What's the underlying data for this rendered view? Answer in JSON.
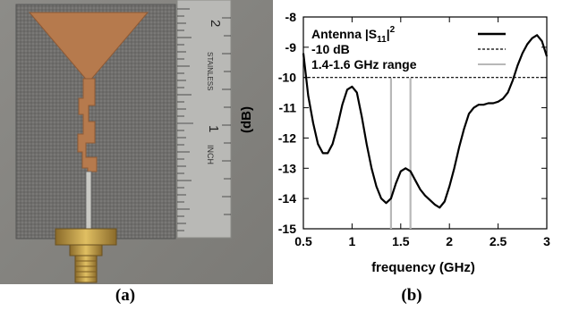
{
  "figure": {
    "panel_a_caption": "(a)",
    "panel_b_caption": "(b)",
    "photo": {
      "description_icons": [
        "antenna-pcb-photo",
        "ruler-icon",
        "sma-connector-icon"
      ],
      "ruler_labels": [
        "2",
        "STAINLESS",
        "1",
        "INCH"
      ]
    }
  },
  "chart_data": {
    "type": "line",
    "title": "",
    "xlabel": "frequency (GHz)",
    "ylabel": "(dB)",
    "xlim": [
      0.5,
      3
    ],
    "ylim": [
      -15,
      -8
    ],
    "xticks": [
      "0.5",
      "1",
      "1.5",
      "2",
      "2.5",
      "3"
    ],
    "yticks": [
      "-8",
      "-9",
      "-10",
      "-11",
      "-12",
      "-13",
      "-14",
      "-15"
    ],
    "grid": false,
    "legend_position": "top-left",
    "series": [
      {
        "name": "Antenna |S11|^2",
        "legend_main": "Antenna |S",
        "legend_sub": "11",
        "legend_sup": "2",
        "style": "solid-thick",
        "color": "#000000",
        "x": [
          0.5,
          0.55,
          0.6,
          0.65,
          0.7,
          0.75,
          0.8,
          0.85,
          0.9,
          0.95,
          1.0,
          1.05,
          1.1,
          1.15,
          1.2,
          1.25,
          1.3,
          1.35,
          1.4,
          1.45,
          1.5,
          1.55,
          1.6,
          1.65,
          1.7,
          1.75,
          1.8,
          1.85,
          1.9,
          1.95,
          2.0,
          2.05,
          2.1,
          2.15,
          2.2,
          2.25,
          2.3,
          2.35,
          2.4,
          2.45,
          2.5,
          2.55,
          2.6,
          2.65,
          2.7,
          2.75,
          2.8,
          2.85,
          2.9,
          2.95,
          3.0
        ],
        "y": [
          -9.2,
          -10.6,
          -11.5,
          -12.2,
          -12.5,
          -12.5,
          -12.2,
          -11.6,
          -10.9,
          -10.4,
          -10.3,
          -10.5,
          -11.3,
          -12.2,
          -13.0,
          -13.6,
          -14.0,
          -14.15,
          -14.0,
          -13.5,
          -13.1,
          -13.0,
          -13.1,
          -13.4,
          -13.7,
          -13.9,
          -14.05,
          -14.2,
          -14.3,
          -14.1,
          -13.6,
          -13.0,
          -12.3,
          -11.7,
          -11.2,
          -11.0,
          -10.9,
          -10.9,
          -10.85,
          -10.85,
          -10.8,
          -10.7,
          -10.5,
          -10.1,
          -9.6,
          -9.2,
          -8.9,
          -8.7,
          -8.6,
          -8.8,
          -9.3
        ]
      },
      {
        "name": "-10 dB",
        "style": "dashed",
        "color": "#000000",
        "x": [
          0.5,
          3.0
        ],
        "y": [
          -10,
          -10
        ]
      }
    ],
    "range_marker": {
      "name": "1.4-1.6 GHz range",
      "color": "#b8b8b8",
      "x": [
        1.4,
        1.6
      ]
    }
  }
}
